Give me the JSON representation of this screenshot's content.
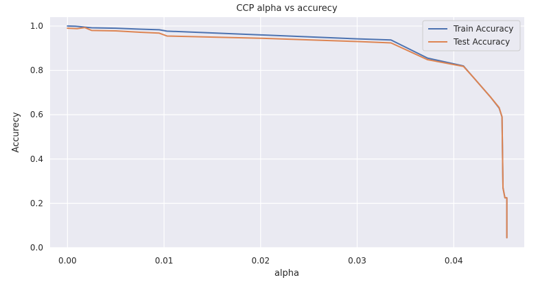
{
  "chart_data": {
    "type": "line",
    "title": "CCP alpha vs accurecy",
    "xlabel": "alpha",
    "ylabel": "Accurecy",
    "xlim": [
      -0.0018,
      0.0473
    ],
    "ylim": [
      0.0,
      1.04
    ],
    "xticks": [
      0.0,
      0.01,
      0.02,
      0.03,
      0.04
    ],
    "xtick_labels": [
      "0.00",
      "0.01",
      "0.02",
      "0.03",
      "0.04"
    ],
    "yticks": [
      0.0,
      0.2,
      0.4,
      0.6,
      0.8,
      1.0
    ],
    "ytick_labels": [
      "0.0",
      "0.2",
      "0.4",
      "0.6",
      "0.8",
      "1.0"
    ],
    "grid": true,
    "legend_position": "top-right",
    "background_color": "#eaeaf2",
    "series": [
      {
        "name": "Train Accuracy",
        "color": "#4c72b0",
        "x": [
          0.0,
          0.0008,
          0.0016,
          0.0025,
          0.005,
          0.0075,
          0.0095,
          0.0103,
          0.02,
          0.03,
          0.0335,
          0.0373,
          0.041,
          0.042,
          0.0438,
          0.0447,
          0.045,
          0.0451,
          0.0453,
          0.0455,
          0.0455
        ],
        "y": [
          1.0,
          0.999,
          0.996,
          0.992,
          0.99,
          0.986,
          0.983,
          0.977,
          0.96,
          0.942,
          0.937,
          0.855,
          0.82,
          0.77,
          0.68,
          0.63,
          0.59,
          0.27,
          0.225,
          0.225,
          0.045
        ]
      },
      {
        "name": "Test Accuracy",
        "color": "#dd8452",
        "x": [
          0.0,
          0.001,
          0.0018,
          0.0025,
          0.005,
          0.0075,
          0.0095,
          0.0103,
          0.02,
          0.03,
          0.0335,
          0.0373,
          0.041,
          0.042,
          0.0438,
          0.0447,
          0.045,
          0.0451,
          0.0453,
          0.0455,
          0.0455
        ],
        "y": [
          0.99,
          0.988,
          0.993,
          0.98,
          0.978,
          0.972,
          0.968,
          0.955,
          0.945,
          0.93,
          0.924,
          0.848,
          0.818,
          0.77,
          0.68,
          0.632,
          0.59,
          0.27,
          0.225,
          0.225,
          0.045
        ]
      }
    ]
  }
}
